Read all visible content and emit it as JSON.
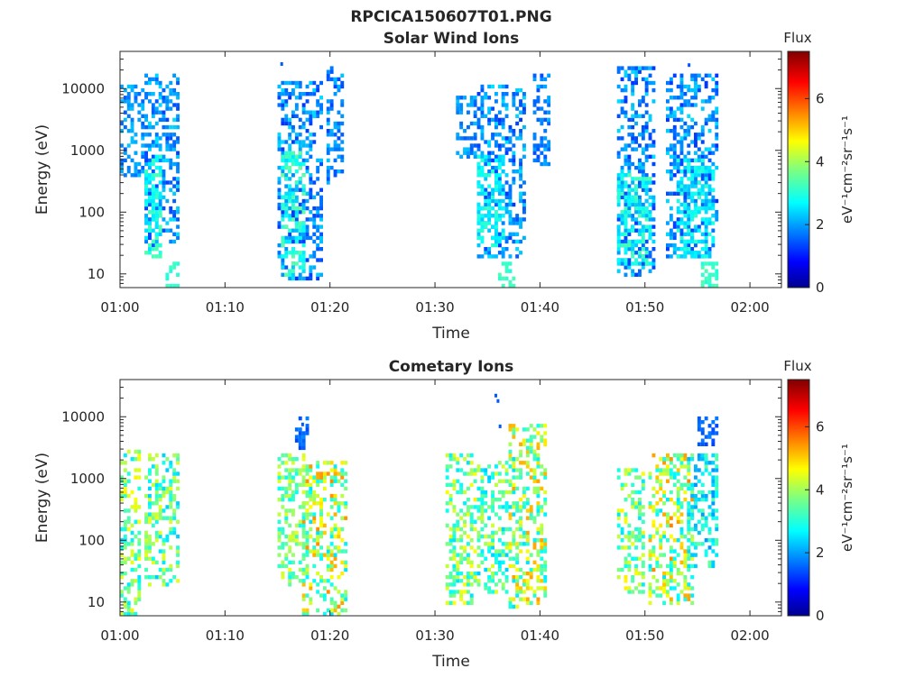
{
  "figure": {
    "filename": "RPCICA150607T01.PNG"
  },
  "colorbar": {
    "title": "Flux",
    "unit_label": "eV⁻¹cm⁻²sr⁻¹s⁻¹",
    "range": [
      0,
      7.5
    ],
    "ticks": [
      "0",
      "2",
      "4",
      "6"
    ],
    "tick_values": [
      0,
      2,
      4,
      6
    ],
    "colormap": "jet"
  },
  "chart_data": [
    {
      "type": "heatmap",
      "title": "Solar Wind Ions",
      "xlabel": "Time",
      "ylabel": "Energy (eV)",
      "xlim": [
        "01:00",
        "02:03"
      ],
      "ylim": [
        6,
        40000
      ],
      "yscale": "log",
      "x_ticks": [
        "01:00",
        "01:10",
        "01:20",
        "01:30",
        "01:40",
        "01:50",
        "02:00"
      ],
      "y_ticks": [
        "10",
        "100",
        "1000",
        "10000"
      ],
      "bursts": [
        {
          "t_start": 0.3,
          "t_end": 2.2,
          "e_low": 400,
          "e_high": 10000,
          "flux": [
            1.6,
            2.4
          ]
        },
        {
          "t_start": 2.4,
          "t_end": 5.6,
          "e_low": 30,
          "e_high": 14000,
          "flux": [
            1.4,
            2.6
          ]
        },
        {
          "t_start": 2.6,
          "t_end": 4.0,
          "e_low": 20,
          "e_high": 700,
          "flux": [
            2.6,
            3.4
          ]
        },
        {
          "t_start": 4.5,
          "t_end": 5.6,
          "e_low": 6,
          "e_high": 12,
          "flux": [
            3.0,
            3.4
          ]
        },
        {
          "t_start": 15.0,
          "t_end": 19.2,
          "e_low": 8,
          "e_high": 11000,
          "flux": [
            1.3,
            2.6
          ]
        },
        {
          "t_start": 15.4,
          "t_end": 17.5,
          "e_low": 10,
          "e_high": 800,
          "flux": [
            2.6,
            3.6
          ]
        },
        {
          "t_start": 19.8,
          "t_end": 21.2,
          "e_low": 300,
          "e_high": 20000,
          "flux": [
            1.4,
            2.4
          ]
        },
        {
          "t_start": 32.0,
          "t_end": 34.0,
          "e_low": 800,
          "e_high": 6000,
          "flux": [
            1.6,
            2.4
          ]
        },
        {
          "t_start": 34.2,
          "t_end": 38.6,
          "e_low": 20,
          "e_high": 10000,
          "flux": [
            1.3,
            2.6
          ]
        },
        {
          "t_start": 34.2,
          "t_end": 36.5,
          "e_low": 30,
          "e_high": 700,
          "flux": [
            2.4,
            3.2
          ]
        },
        {
          "t_start": 36.0,
          "t_end": 37.5,
          "e_low": 6,
          "e_high": 12,
          "flux": [
            3.0,
            3.4
          ]
        },
        {
          "t_start": 39.5,
          "t_end": 41.0,
          "e_low": 500,
          "e_high": 15000,
          "flux": [
            1.5,
            2.3
          ]
        },
        {
          "t_start": 47.5,
          "t_end": 51.0,
          "e_low": 10,
          "e_high": 18000,
          "flux": [
            1.3,
            2.6
          ]
        },
        {
          "t_start": 47.5,
          "t_end": 50.5,
          "e_low": 15,
          "e_high": 400,
          "flux": [
            2.4,
            3.4
          ]
        },
        {
          "t_start": 52.0,
          "t_end": 57.0,
          "e_low": 20,
          "e_high": 15000,
          "flux": [
            1.3,
            2.6
          ]
        },
        {
          "t_start": 53.0,
          "t_end": 56.5,
          "e_low": 20,
          "e_high": 600,
          "flux": [
            2.4,
            3.2
          ]
        },
        {
          "t_start": 55.5,
          "t_end": 56.8,
          "e_low": 6,
          "e_high": 12,
          "flux": [
            3.0,
            3.4
          ]
        }
      ],
      "outliers": [
        {
          "t": 15.4,
          "e": 25000,
          "flux": 1.6
        },
        {
          "t": 54.2,
          "e": 24000,
          "flux": 1.6
        }
      ]
    },
    {
      "type": "heatmap",
      "title": "Cometary Ions",
      "xlabel": "Time",
      "ylabel": "Energy (eV)",
      "xlim": [
        "01:00",
        "02:03"
      ],
      "ylim": [
        6,
        40000
      ],
      "yscale": "log",
      "x_ticks": [
        "01:00",
        "01:10",
        "01:20",
        "01:30",
        "01:40",
        "01:50",
        "02:00"
      ],
      "y_ticks": [
        "10",
        "100",
        "1000",
        "10000"
      ],
      "bursts": [
        {
          "t_start": 0.0,
          "t_end": 2.0,
          "e_low": 6,
          "e_high": 2500,
          "flux": [
            2.6,
            4.8
          ]
        },
        {
          "t_start": 2.5,
          "t_end": 5.4,
          "e_low": 20,
          "e_high": 2000,
          "flux": [
            2.4,
            4.6
          ]
        },
        {
          "t_start": 15.0,
          "t_end": 18.0,
          "e_low": 20,
          "e_high": 2000,
          "flux": [
            2.8,
            4.6
          ]
        },
        {
          "t_start": 17.5,
          "t_end": 21.6,
          "e_low": 6,
          "e_high": 1500,
          "flux": [
            2.6,
            5.6
          ]
        },
        {
          "t_start": 16.8,
          "t_end": 18.0,
          "e_low": 3000,
          "e_high": 8000,
          "flux": [
            1.4,
            2.0
          ]
        },
        {
          "t_start": 31.0,
          "t_end": 34.0,
          "e_low": 10,
          "e_high": 2000,
          "flux": [
            2.6,
            4.8
          ]
        },
        {
          "t_start": 34.0,
          "t_end": 37.0,
          "e_low": 15,
          "e_high": 1500,
          "flux": [
            2.4,
            4.4
          ]
        },
        {
          "t_start": 37.0,
          "t_end": 40.5,
          "e_low": 8,
          "e_high": 6000,
          "flux": [
            2.6,
            5.4
          ]
        },
        {
          "t_start": 47.5,
          "t_end": 50.0,
          "e_low": 15,
          "e_high": 1200,
          "flux": [
            2.6,
            4.8
          ]
        },
        {
          "t_start": 50.5,
          "t_end": 54.5,
          "e_low": 10,
          "e_high": 2000,
          "flux": [
            2.6,
            5.6
          ]
        },
        {
          "t_start": 54.0,
          "t_end": 57.0,
          "e_low": 40,
          "e_high": 2000,
          "flux": [
            2.0,
            3.6
          ]
        },
        {
          "t_start": 55.0,
          "t_end": 56.8,
          "e_low": 3500,
          "e_high": 8000,
          "flux": [
            1.4,
            1.9
          ]
        }
      ],
      "outliers": [
        {
          "t": 35.8,
          "e": 22000,
          "flux": 1.6
        },
        {
          "t": 36.0,
          "e": 18000,
          "flux": 1.6
        },
        {
          "t": 36.2,
          "e": 7000,
          "flux": 1.6
        },
        {
          "t": 17.4,
          "e": 7500,
          "flux": 1.6
        }
      ]
    }
  ]
}
